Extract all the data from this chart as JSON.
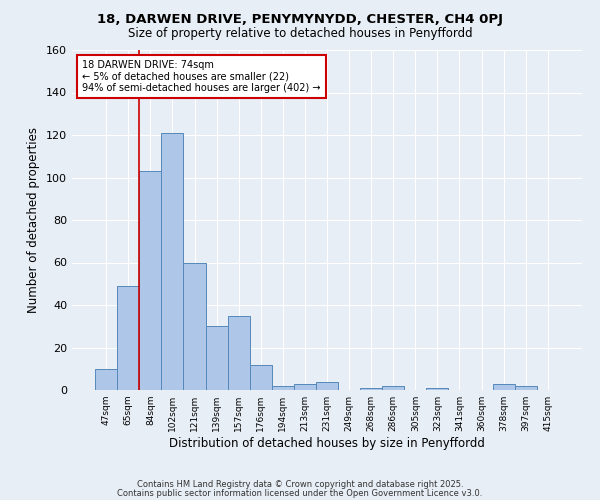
{
  "title1": "18, DARWEN DRIVE, PENYMYNYDD, CHESTER, CH4 0PJ",
  "title2": "Size of property relative to detached houses in Penyffordd",
  "xlabel": "Distribution of detached houses by size in Penyffordd",
  "ylabel": "Number of detached properties",
  "bar_labels": [
    "47sqm",
    "65sqm",
    "84sqm",
    "102sqm",
    "121sqm",
    "139sqm",
    "157sqm",
    "176sqm",
    "194sqm",
    "213sqm",
    "231sqm",
    "249sqm",
    "268sqm",
    "286sqm",
    "305sqm",
    "323sqm",
    "341sqm",
    "360sqm",
    "378sqm",
    "397sqm",
    "415sqm"
  ],
  "bar_values": [
    10,
    49,
    103,
    121,
    60,
    30,
    35,
    12,
    2,
    3,
    4,
    0,
    1,
    2,
    0,
    1,
    0,
    0,
    3,
    2,
    0
  ],
  "bar_color": "#aec6e8",
  "bar_edge_color": "#5588bb",
  "vline_color": "#cc0000",
  "annotation_title": "18 DARWEN DRIVE: 74sqm",
  "annotation_line1": "← 5% of detached houses are smaller (22)",
  "annotation_line2": "94% of semi-detached houses are larger (402) →",
  "annotation_box_color": "#ffffff",
  "annotation_box_edge": "#cc0000",
  "ylim": [
    0,
    160
  ],
  "yticks": [
    0,
    20,
    40,
    60,
    80,
    100,
    120,
    140,
    160
  ],
  "footnote1": "Contains HM Land Registry data © Crown copyright and database right 2025.",
  "footnote2": "Contains public sector information licensed under the Open Government Licence v3.0.",
  "bg_color": "#e8eef5",
  "plot_bg_color": "#e8eef5"
}
